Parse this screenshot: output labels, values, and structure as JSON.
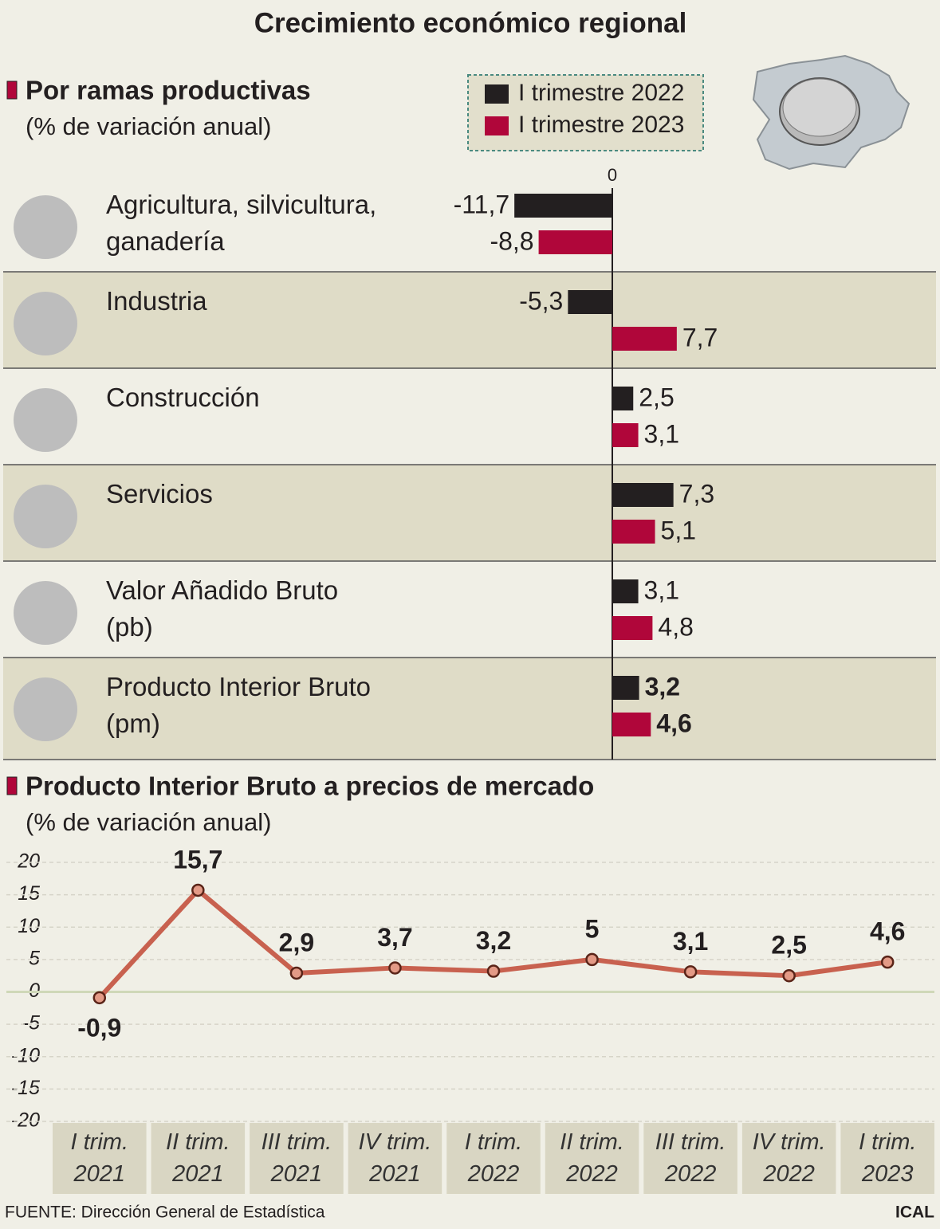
{
  "title": "Crecimiento económico regional",
  "source": "FUENTE: Dirección General de Estadística",
  "credit": "ICAL",
  "chart_data": [
    {
      "type": "hbar",
      "title": "Por ramas productivas",
      "subtitle": "(% de variación anual)",
      "categories": [
        "Agricultura, silvicultura,\nganadería",
        "Industria",
        "Construcción",
        "Servicios",
        "Valor Añadido Bruto\n(pb)",
        "Producto Interior Bruto\n(pm)"
      ],
      "series": [
        {
          "name": "I trimestre 2022",
          "color": "#231f20",
          "values": [
            -11.7,
            -5.3,
            2.5,
            7.3,
            3.1,
            3.2
          ],
          "value_labels": [
            "-11,7",
            "-5,3",
            "2,5",
            "7,3",
            "3,1",
            "3,2"
          ]
        },
        {
          "name": "I trimestre 2023",
          "color": "#b0063a",
          "values": [
            -8.8,
            7.7,
            3.1,
            5.1,
            4.8,
            4.6
          ],
          "value_labels": [
            "-8,8",
            "7,7",
            "3,1",
            "5,1",
            "4,8",
            "4,6"
          ]
        }
      ],
      "xlim": [
        -12,
        38
      ],
      "xticks": [
        0
      ]
    },
    {
      "type": "line",
      "title": "Producto Interior Bruto a precios de mercado",
      "subtitle": "(% de variación anual)",
      "categories": [
        "I trim.\n2021",
        "II trim.\n2021",
        "III trim.\n2021",
        "IV trim.\n2021",
        "I trim.\n2022",
        "II trim.\n2022",
        "III trim.\n2022",
        "IV trim.\n2022",
        "I trim.\n2023"
      ],
      "values": [
        -0.9,
        15.7,
        2.9,
        3.7,
        3.2,
        5,
        3.1,
        2.5,
        4.6
      ],
      "value_labels": [
        "-0,9",
        "15,7",
        "2,9",
        "3,7",
        "3,2",
        "5",
        "3,1",
        "2,5",
        "4,6"
      ],
      "color": "#c8614f",
      "ylim": [
        -20,
        20
      ],
      "yticks": [
        20,
        15,
        10,
        5,
        0,
        -5,
        -10,
        -15,
        -20
      ],
      "grid": true
    }
  ]
}
